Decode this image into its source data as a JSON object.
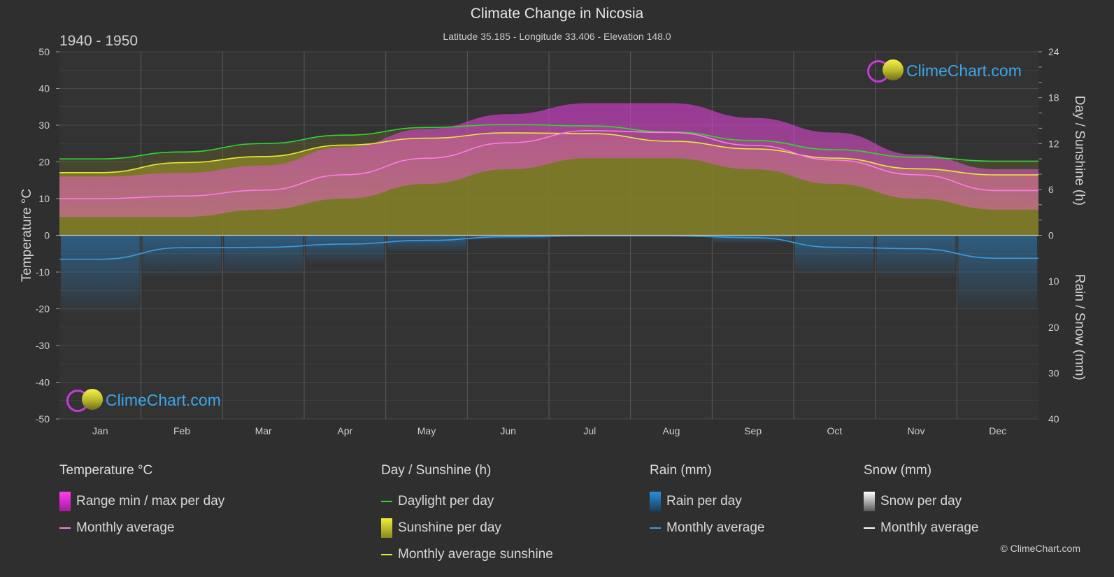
{
  "title": "Climate Change in Nicosia",
  "subtitle": "Latitude 35.185 - Longitude 33.406 - Elevation 148.0",
  "period": "1940 - 1950",
  "brand": "ClimeChart.com",
  "copyright": "© ClimeChart.com",
  "colors": {
    "background": "#2f2f2f",
    "temp_range": "#d43ad0",
    "temp_avg": "#ff7be4",
    "daylight": "#2fd82f",
    "sunshine_fill": "#9b9a28",
    "sunshine_avg": "#e8e83a",
    "rain": "#2a7fc0",
    "rain_avg": "#3a9be0",
    "snow_avg": "#ffffff"
  },
  "chart_data": {
    "type": "line",
    "categories": [
      "Jan",
      "Feb",
      "Mar",
      "Apr",
      "May",
      "Jun",
      "Jul",
      "Aug",
      "Sep",
      "Oct",
      "Nov",
      "Dec"
    ],
    "axes": {
      "left": {
        "label": "Temperature °C",
        "range": [
          -50,
          50
        ],
        "ticks": [
          50,
          40,
          30,
          20,
          10,
          0,
          -10,
          -20,
          -30,
          -40,
          -50
        ]
      },
      "right_top": {
        "label": "Day / Sunshine (h)",
        "range": [
          0,
          24
        ],
        "ticks": [
          24,
          18,
          12,
          6,
          0
        ]
      },
      "right_bottom": {
        "label": "Rain / Snow (mm)",
        "range": [
          0,
          40
        ],
        "ticks": [
          0,
          10,
          20,
          30,
          40
        ]
      }
    },
    "grid": true,
    "series": [
      {
        "name": "Daylight per day",
        "axis": "right_top",
        "values": [
          10.0,
          10.9,
          12.0,
          13.1,
          14.1,
          14.5,
          14.3,
          13.5,
          12.4,
          11.2,
          10.2,
          9.7
        ]
      },
      {
        "name": "Monthly average sunshine",
        "axis": "right_top",
        "values": [
          8.2,
          9.5,
          10.3,
          11.8,
          12.7,
          13.4,
          13.3,
          12.3,
          11.3,
          10.1,
          8.7,
          7.9
        ]
      },
      {
        "name": "Monthly average",
        "group": "Temperature °C",
        "axis": "left",
        "values": [
          10.0,
          10.7,
          12.3,
          16.5,
          21.0,
          25.2,
          28.5,
          28.0,
          24.5,
          20.5,
          16.5,
          12.2
        ]
      },
      {
        "name": "Range max per day",
        "group": "Temperature °C",
        "axis": "left",
        "values": [
          16,
          17,
          19,
          24,
          29,
          33,
          36,
          36,
          32,
          28,
          22,
          18
        ]
      },
      {
        "name": "Range min per day",
        "group": "Temperature °C",
        "axis": "left",
        "values": [
          5,
          5,
          7,
          10,
          14,
          18,
          21,
          21,
          18,
          14,
          10,
          7
        ]
      },
      {
        "name": "Monthly average",
        "group": "Rain (mm)",
        "axis": "right_bottom",
        "values": [
          5.2,
          2.7,
          2.6,
          1.9,
          1.1,
          0.3,
          0.1,
          0.1,
          0.5,
          2.6,
          2.9,
          5.0
        ]
      },
      {
        "name": "Monthly average",
        "group": "Snow (mm)",
        "axis": "right_bottom",
        "values": [
          0,
          0,
          0,
          0,
          0,
          0,
          0,
          0,
          0,
          0,
          0,
          0
        ]
      }
    ]
  },
  "legend": {
    "temperature": {
      "title": "Temperature °C",
      "items": [
        "Range min / max per day",
        "Monthly average"
      ]
    },
    "sunshine": {
      "title": "Day / Sunshine (h)",
      "items": [
        "Daylight per day",
        "Sunshine per day",
        "Monthly average sunshine"
      ]
    },
    "rain": {
      "title": "Rain (mm)",
      "items": [
        "Rain per day",
        "Monthly average"
      ]
    },
    "snow": {
      "title": "Snow (mm)",
      "items": [
        "Snow per day",
        "Monthly average"
      ]
    }
  }
}
